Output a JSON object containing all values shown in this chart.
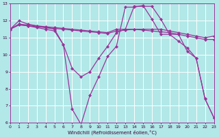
{
  "xlabel": "Windchill (Refroidissement éolien,°C)",
  "background_color": "#b2e8e8",
  "grid_color": "#ffffff",
  "line_color": "#993399",
  "xlim": [
    0,
    23
  ],
  "ylim": [
    6,
    13
  ],
  "xticks": [
    0,
    1,
    2,
    3,
    4,
    5,
    6,
    7,
    8,
    9,
    10,
    11,
    12,
    13,
    14,
    15,
    16,
    17,
    18,
    19,
    20,
    21,
    22,
    23
  ],
  "yticks": [
    6,
    7,
    8,
    9,
    10,
    11,
    12,
    13
  ],
  "series": [
    {
      "x": [
        0,
        1,
        2,
        3,
        4,
        5,
        6,
        7,
        8,
        9,
        10,
        11,
        12,
        13,
        14,
        15,
        16,
        17,
        18,
        19,
        20,
        21,
        22,
        23
      ],
      "y": [
        11.5,
        12.0,
        11.8,
        11.7,
        11.6,
        11.5,
        10.6,
        6.8,
        5.9,
        7.6,
        8.7,
        9.9,
        10.5,
        12.8,
        12.8,
        12.9,
        12.1,
        11.2,
        11.2,
        11.2,
        10.2,
        9.8,
        7.4,
        6.3
      ]
    },
    {
      "x": [
        0,
        1,
        2,
        3,
        4,
        5,
        6,
        7,
        8,
        9,
        10,
        11,
        12,
        13,
        14,
        15,
        16,
        17,
        18,
        19,
        20,
        21,
        22,
        23
      ],
      "y": [
        11.5,
        11.8,
        11.7,
        11.6,
        11.5,
        11.4,
        10.6,
        9.2,
        8.7,
        9.0,
        9.8,
        10.5,
        11.3,
        11.5,
        12.85,
        12.85,
        12.85,
        12.1,
        11.2,
        10.8,
        10.4,
        9.8,
        7.4,
        6.3
      ]
    },
    {
      "x": [
        0,
        1,
        2,
        3,
        4,
        5,
        6,
        7,
        8,
        9,
        10,
        11,
        12,
        13,
        14,
        15,
        16,
        17,
        18,
        19,
        20,
        21,
        22,
        23
      ],
      "y": [
        11.5,
        11.8,
        11.75,
        11.7,
        11.65,
        11.6,
        11.55,
        11.5,
        11.45,
        11.4,
        11.35,
        11.3,
        11.5,
        11.5,
        11.5,
        11.5,
        11.5,
        11.5,
        11.4,
        11.3,
        11.2,
        11.1,
        11.0,
        11.1
      ]
    },
    {
      "x": [
        0,
        1,
        2,
        3,
        4,
        5,
        6,
        7,
        8,
        9,
        10,
        11,
        12,
        13,
        14,
        15,
        16,
        17,
        18,
        19,
        20,
        21,
        22,
        23
      ],
      "y": [
        11.5,
        11.75,
        11.7,
        11.65,
        11.6,
        11.55,
        11.5,
        11.45,
        11.4,
        11.35,
        11.3,
        11.25,
        11.4,
        11.45,
        11.5,
        11.45,
        11.4,
        11.35,
        11.3,
        11.2,
        11.1,
        11.0,
        10.9,
        10.9
      ]
    }
  ]
}
